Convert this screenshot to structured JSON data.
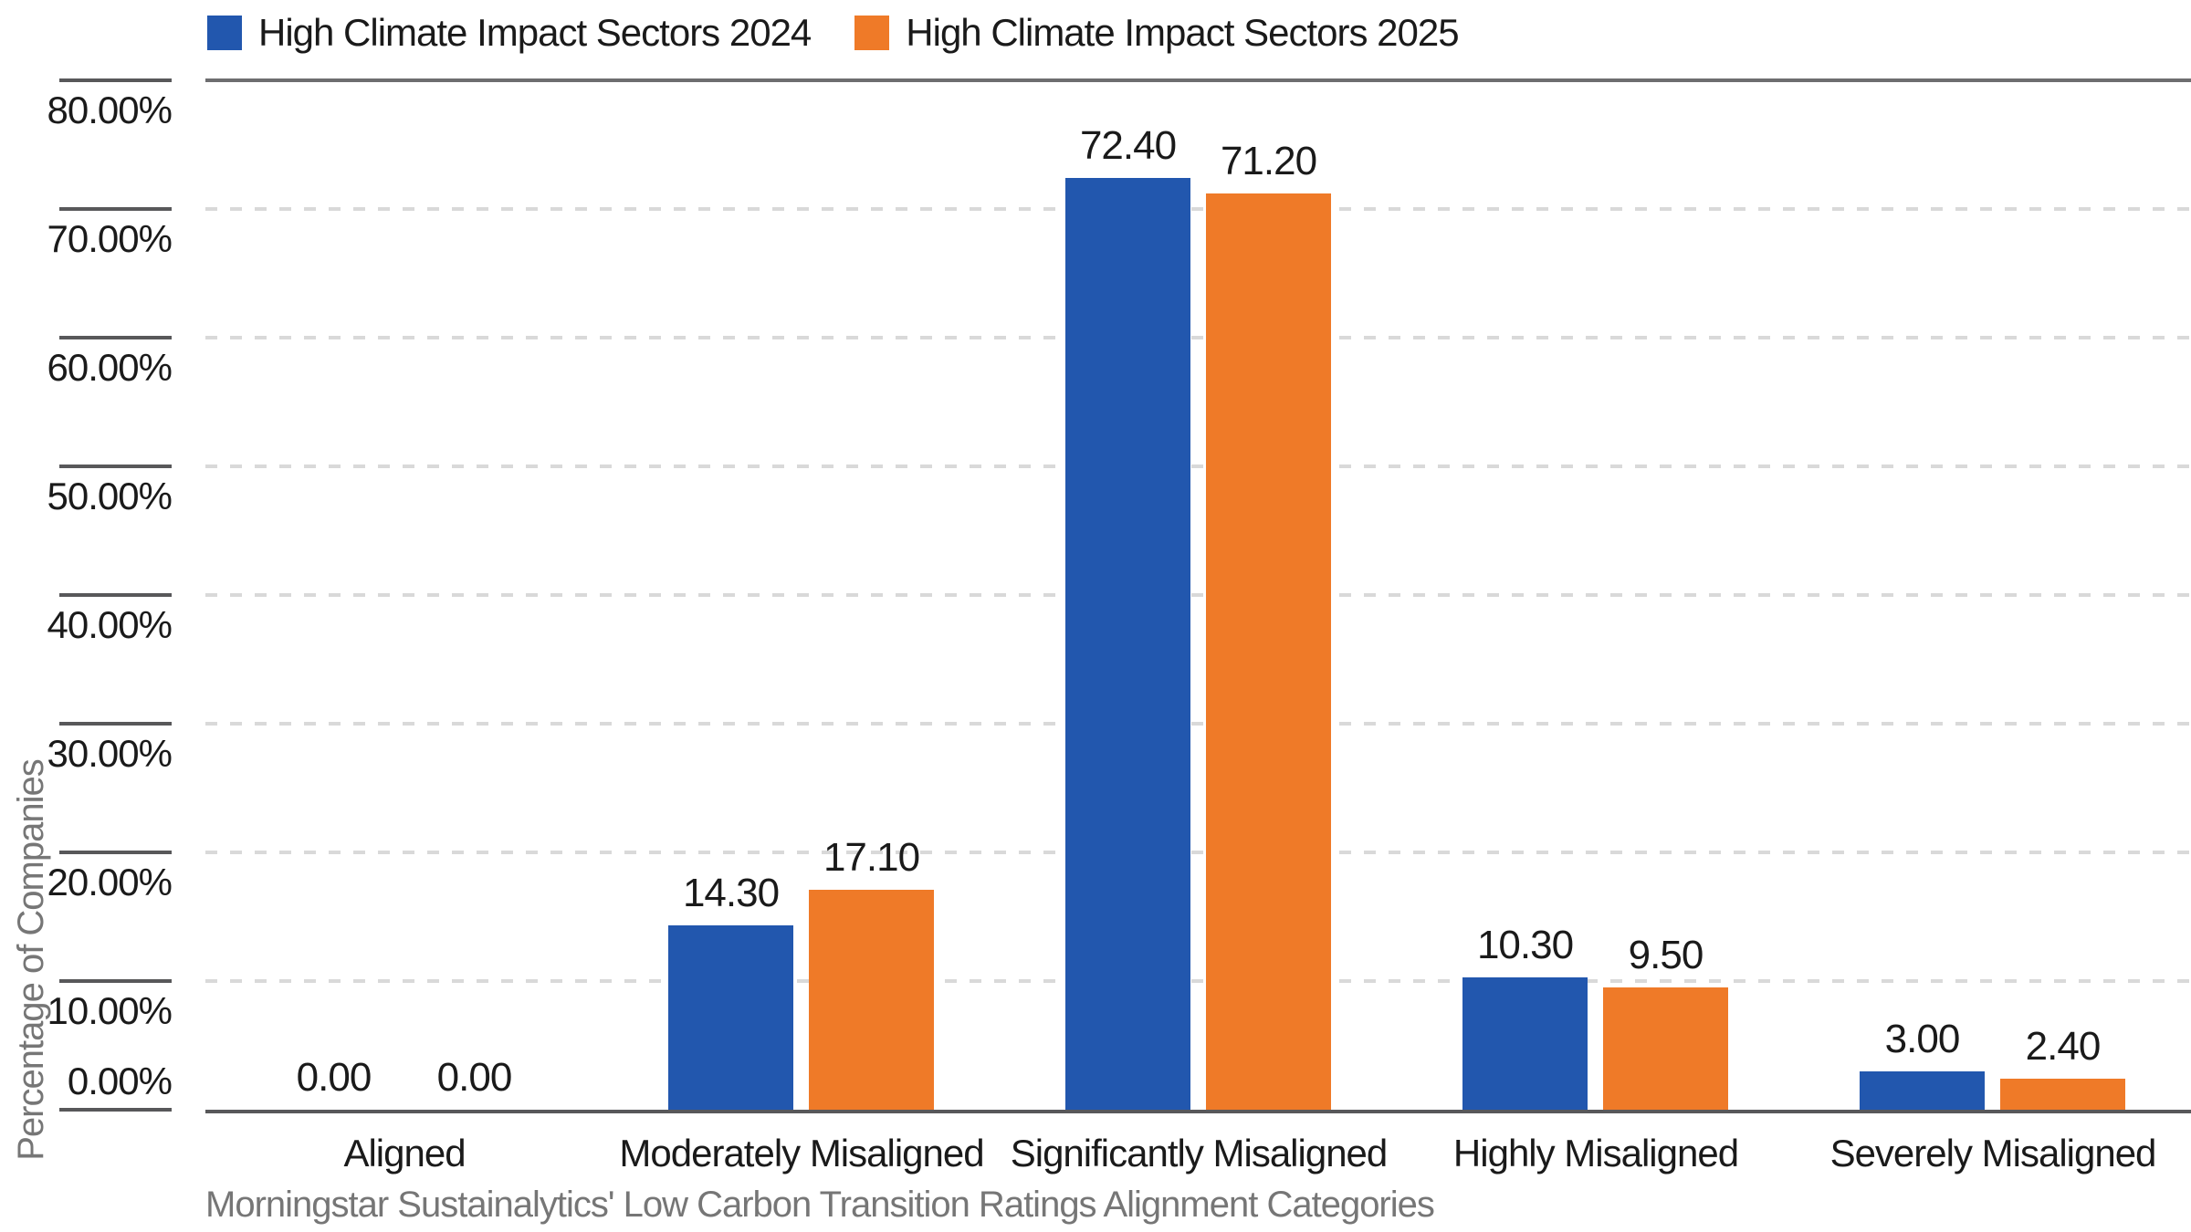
{
  "chart_data": {
    "type": "bar",
    "title": "",
    "categories": [
      "Aligned",
      "Moderately Misaligned",
      "Significantly Misaligned",
      "Highly Misaligned",
      "Severely Misaligned"
    ],
    "series": [
      {
        "name": "High Climate Impact Sectors 2024",
        "color": "#2257AE",
        "values": [
          0.0,
          14.3,
          72.4,
          10.3,
          3.0
        ]
      },
      {
        "name": "High Climate Impact Sectors 2025",
        "color": "#EF7A28",
        "values": [
          0.0,
          17.1,
          71.2,
          9.5,
          2.4
        ]
      }
    ],
    "xlabel": "Morningstar Sustainalytics' Low Carbon Transition Ratings Alignment Categories",
    "ylabel": "Percentage of Companies",
    "ylim": [
      0,
      80
    ],
    "ytick_step": 10,
    "ytick_labels": [
      "0.00%",
      "10.00%",
      "20.00%",
      "30.00%",
      "40.00%",
      "50.00%",
      "60.00%",
      "70.00%",
      "80.00%"
    ],
    "value_label_decimals": 2,
    "grid": "horizontal-dashed",
    "legend_position": "top-left"
  },
  "colors": {
    "series_2024": "#2257AE",
    "series_2025": "#EF7A28",
    "gridline": "#D9D9D9",
    "plot_top_line": "#6E6E70",
    "axis_baseline": "#58585A",
    "tick_segment": "#58585A",
    "text_primary": "#1A1A1A",
    "text_secondary": "#767676",
    "background": "#FFFFFF"
  }
}
